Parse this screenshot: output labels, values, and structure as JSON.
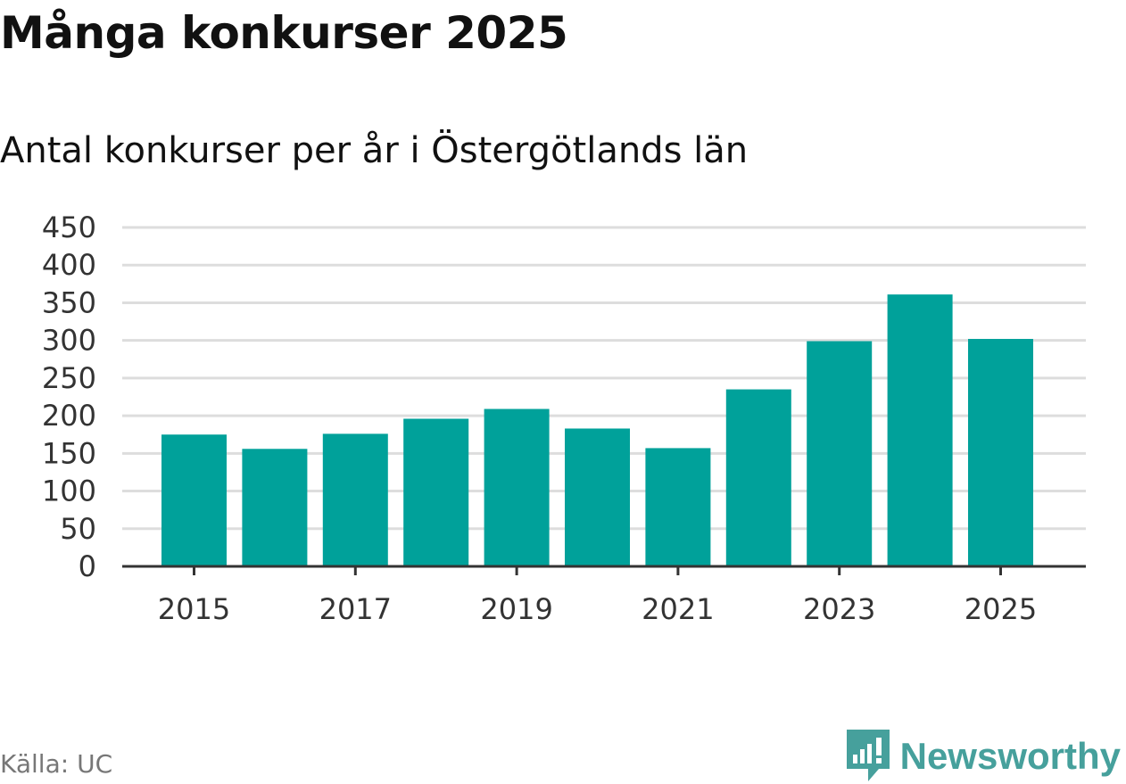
{
  "title": "Många konkurser 2025",
  "subtitle": "Antal konkurser per år i Östergötlands län",
  "source": "Källa: UC",
  "brand": "Newsworthy",
  "colors": {
    "bar": "#00a19a",
    "grid": "#dddddd",
    "axis": "#333333",
    "brand": "#46a09c"
  },
  "chart_data": {
    "type": "bar",
    "title": "Många konkurser 2025",
    "subtitle": "Antal konkurser per år i Östergötlands län",
    "xlabel": "",
    "ylabel": "",
    "categories": [
      "2015",
      "2016",
      "2017",
      "2018",
      "2019",
      "2020",
      "2021",
      "2022",
      "2023",
      "2024",
      "2025"
    ],
    "values": [
      175,
      156,
      176,
      196,
      209,
      183,
      157,
      235,
      299,
      361,
      302
    ],
    "x_tick_labels": [
      "2015",
      "2017",
      "2019",
      "2021",
      "2023",
      "2025"
    ],
    "y_ticks": [
      0,
      50,
      100,
      150,
      200,
      250,
      300,
      350,
      400,
      450
    ],
    "ylim": [
      0,
      450
    ],
    "grid": true,
    "legend": "none"
  }
}
